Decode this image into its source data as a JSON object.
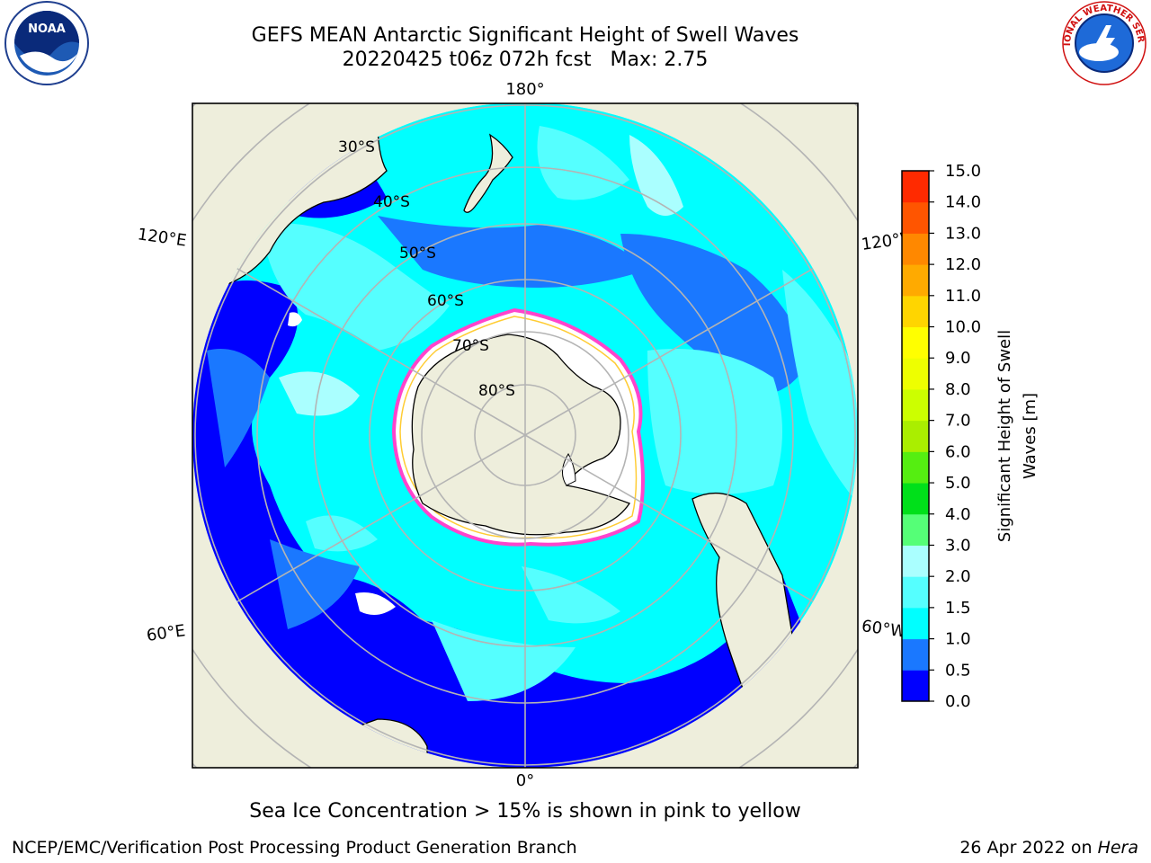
{
  "header": {
    "title_line1": "GEFS MEAN Antarctic Significant Height of Swell Waves",
    "title_line2": "20220425 t06z 072h fcst   Max: 2.75"
  },
  "logos": {
    "left": {
      "text": "NOAA",
      "icon": "noaa-logo"
    },
    "right": {
      "text": "NATIONAL WEATHER SERVICE",
      "icon": "nws-logo"
    }
  },
  "map": {
    "projection": "south-polar-stereographic",
    "longitude_labels": [
      "180°",
      "120°E",
      "120°W",
      "60°E",
      "60°W",
      "0°"
    ],
    "latitude_labels": [
      "30°S",
      "40°S",
      "50°S",
      "60°S",
      "70°S",
      "80°S"
    ],
    "colors": {
      "land": "#eeeedc",
      "ice": "#ffffff",
      "ice_edge": [
        "#ff44cc",
        "#ffcc33"
      ],
      "grid": "#b4b4b4"
    }
  },
  "colorbar": {
    "label_line1": "Significant Height of Swell",
    "label_line2": "Waves [m]",
    "ticks": [
      "0.0",
      "0.5",
      "1.0",
      "1.5",
      "2.0",
      "3.0",
      "4.0",
      "5.0",
      "6.0",
      "7.0",
      "8.0",
      "9.0",
      "10.0",
      "11.0",
      "12.0",
      "13.0",
      "14.0",
      "15.0"
    ],
    "colors": [
      "#0000ff",
      "#1a78ff",
      "#00ffff",
      "#55ffff",
      "#aaffff",
      "#55ff77",
      "#00e01a",
      "#55ee11",
      "#aaee00",
      "#ccff00",
      "#eeff00",
      "#ffff00",
      "#ffd500",
      "#ffaa00",
      "#ff8800",
      "#ff5500",
      "#ff2a00",
      "#ff0000"
    ]
  },
  "footer": {
    "note": "Sea Ice Concentration > 15% is shown in pink to yellow",
    "credit": "NCEP/EMC/Verification Post Processing Product Generation Branch",
    "date": "26 Apr 2022 on",
    "host": "Hera"
  }
}
